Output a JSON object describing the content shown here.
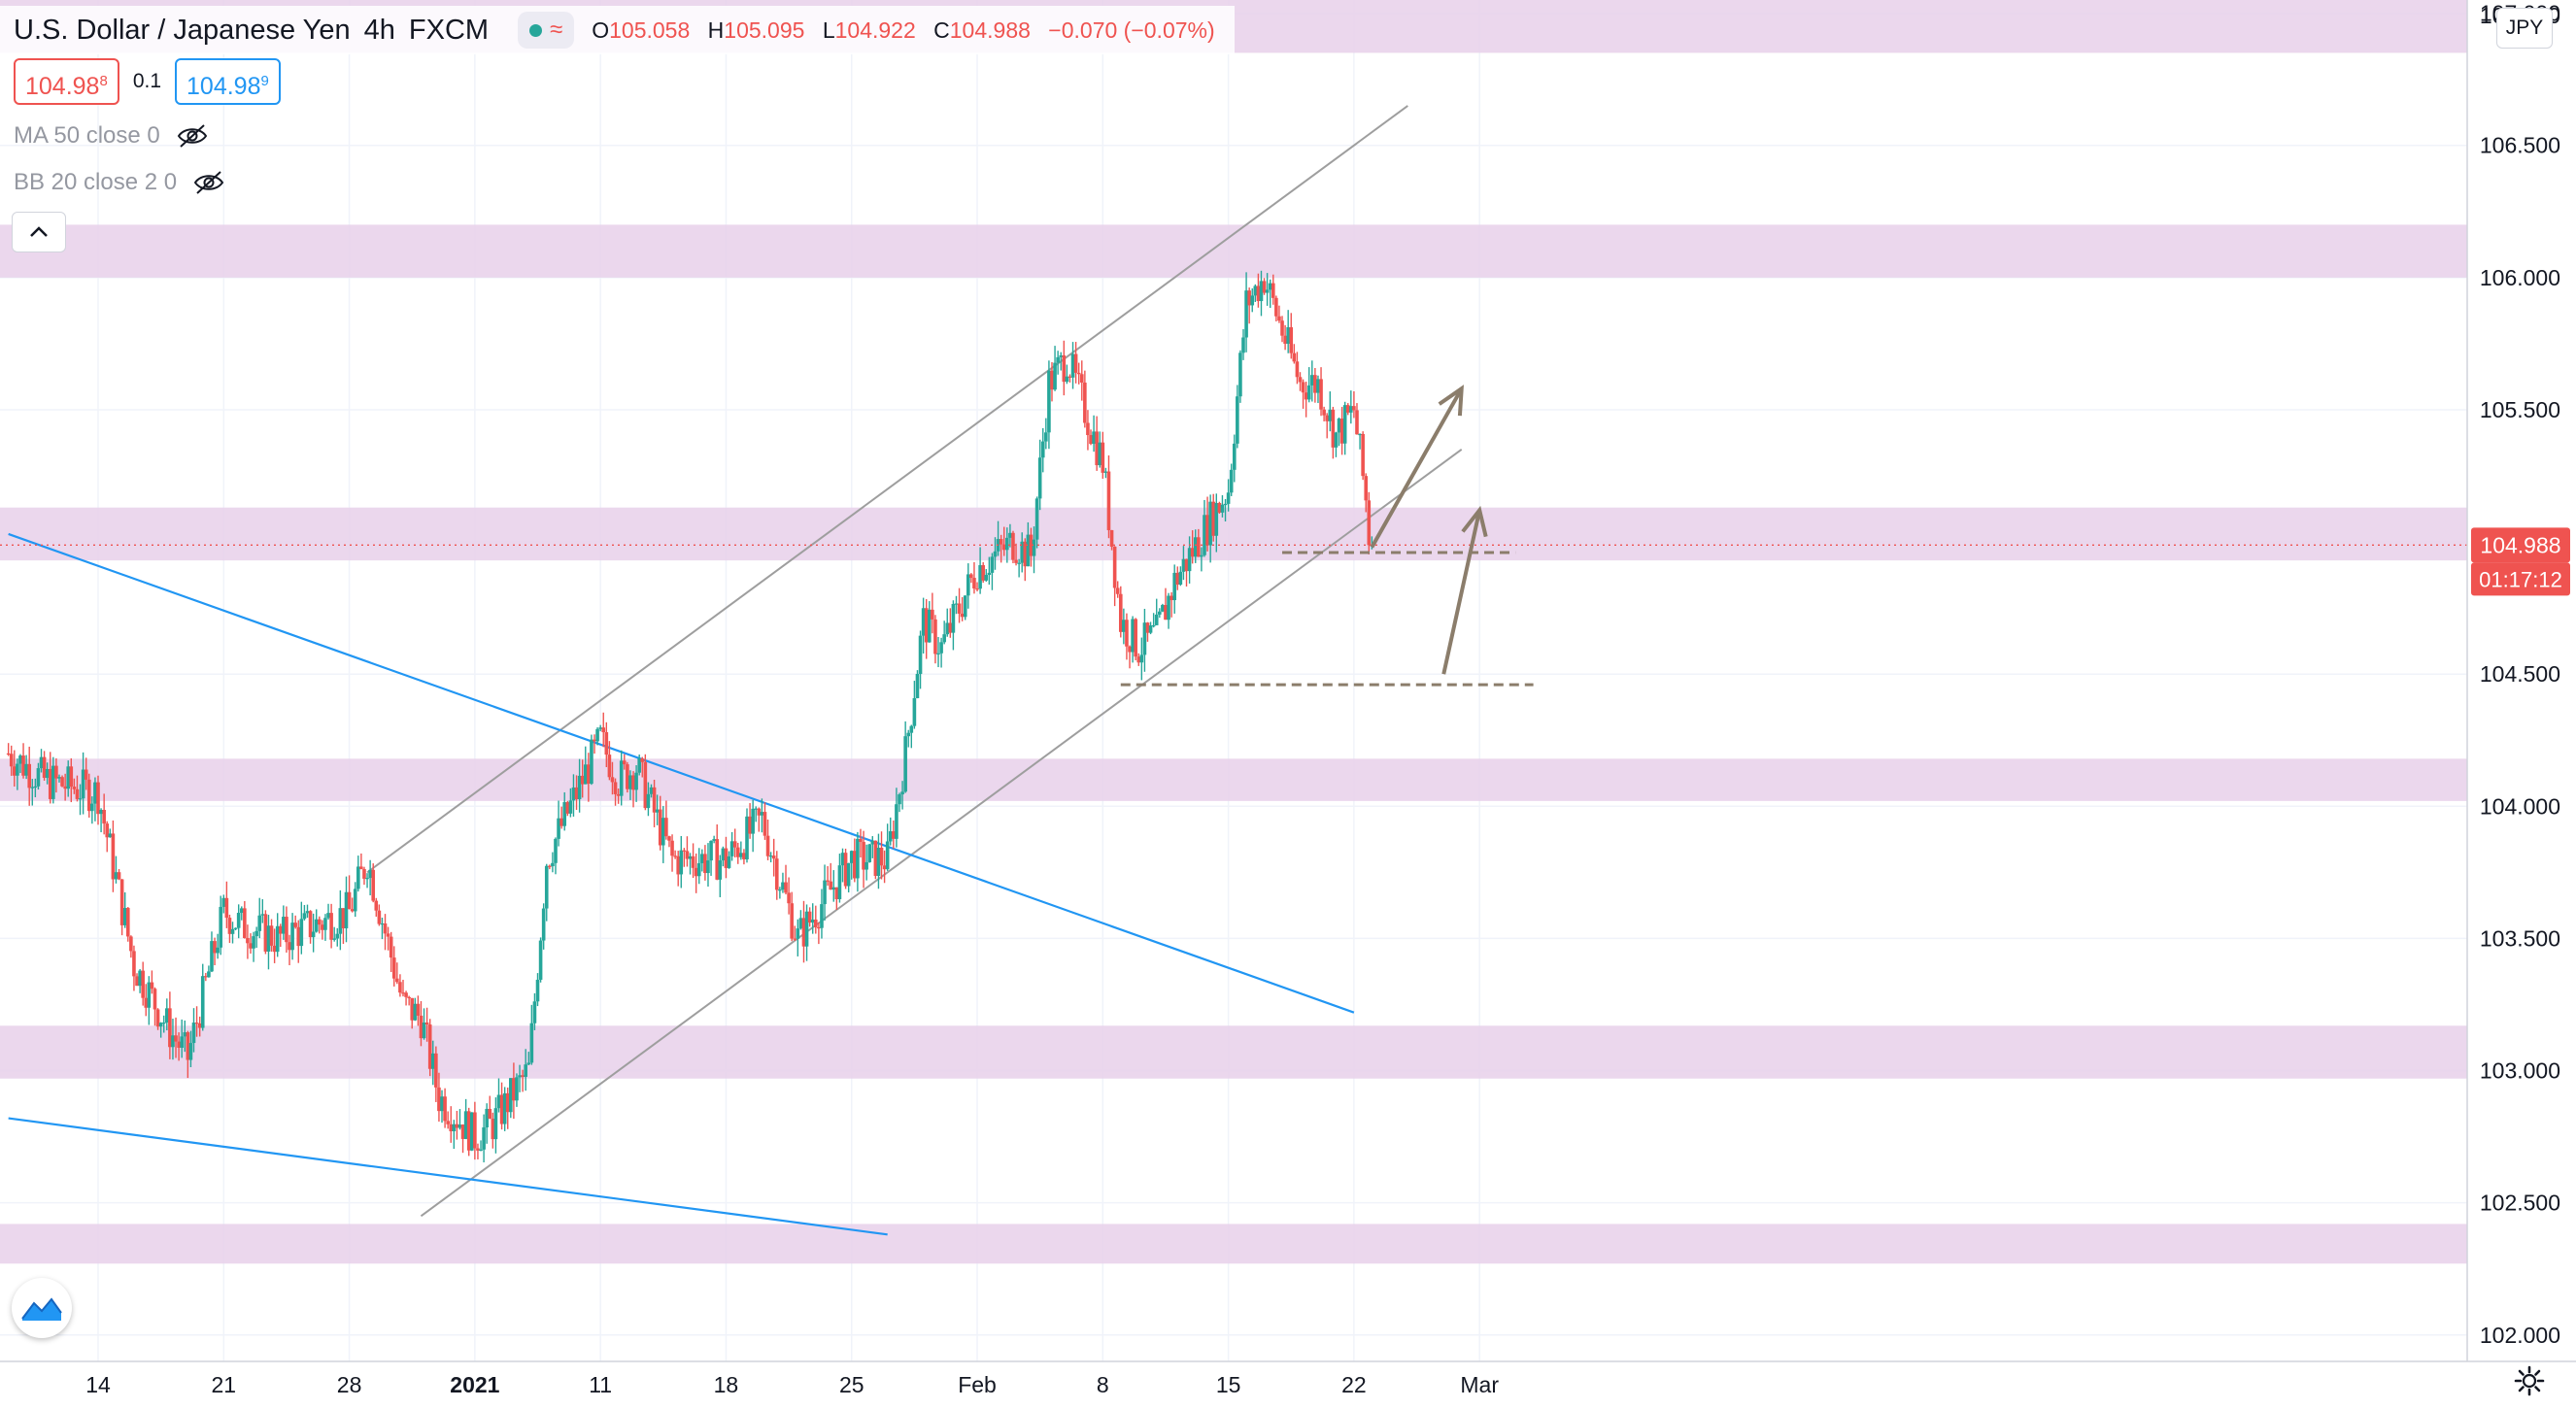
{
  "header": {
    "symbol_title": "U.S. Dollar / Japanese Yen",
    "interval": "4h",
    "exchange": "FXCM",
    "status_wave": "≈",
    "ohlc": {
      "o_label": "O",
      "o_value": "105.058",
      "h_label": "H",
      "h_value": "105.095",
      "l_label": "L",
      "l_value": "104.922",
      "c_label": "C",
      "c_value": "104.988",
      "change": "−0.070 (−0.07%)"
    }
  },
  "trade": {
    "sell_price": "104.98",
    "sell_pip": "8",
    "spread": "0.1",
    "buy_price": "104.98",
    "buy_pip": "9"
  },
  "indicators": [
    {
      "label": "MA 50 close 0"
    },
    {
      "label": "BB 20 close 2 0"
    }
  ],
  "currency_badge": "JPY",
  "colors": {
    "up": "#26a69a",
    "down": "#ef5350",
    "zone": "#e7d0ea",
    "trend_blue": "#2196f3",
    "channel_gray": "#9e9e9e",
    "arrow": "#8b7d6b",
    "dashed": "#8b7d6b"
  },
  "chart_data": {
    "type": "candlestick",
    "y_axis": {
      "ticks": [
        "102.000",
        "102.500",
        "103.000",
        "103.500",
        "104.000",
        "104.500",
        "105.000",
        "105.500",
        "106.000",
        "106.500",
        "107.000"
      ],
      "ylim": [
        101.9,
        107.05
      ],
      "partial_top_label": "107.000"
    },
    "x_axis": {
      "labels": [
        "14",
        "21",
        "28",
        "2021",
        "11",
        "18",
        "25",
        "Feb",
        "8",
        "15",
        "22",
        "Mar"
      ]
    },
    "last_price": {
      "value": "104.988",
      "countdown": "01:17:12"
    },
    "zones": [
      [
        106.85,
        107.05
      ],
      [
        106.0,
        106.2
      ],
      [
        104.93,
        105.13
      ],
      [
        104.02,
        104.18
      ],
      [
        102.97,
        103.17
      ],
      [
        102.27,
        102.42
      ]
    ],
    "channel": {
      "upper": [
        [
          "Dec 29",
          103.75
        ],
        [
          "Feb 25",
          106.65
        ]
      ],
      "lower": [
        [
          "Jan 1",
          102.45
        ],
        [
          "Feb 28",
          105.35
        ]
      ]
    },
    "trendlines": [
      {
        "from": [
          "Dec 9",
          105.03
        ],
        "to": [
          "Feb 22",
          103.22
        ]
      },
      {
        "from": [
          "Dec 9",
          102.82
        ],
        "to": [
          "Jan 27",
          102.38
        ]
      }
    ],
    "dashed_levels": [
      {
        "value": 104.46,
        "from": "Feb 9",
        "to": "Mar 4"
      },
      {
        "value": 104.96,
        "from": "Feb 18",
        "to": "Mar 3"
      }
    ],
    "arrows": [
      {
        "from": [
          "Feb 23",
          104.98
        ],
        "to": [
          "Feb 28",
          105.58
        ]
      },
      {
        "from": [
          "Feb 27",
          104.5
        ],
        "to": [
          "Mar 1",
          105.12
        ]
      }
    ],
    "price_path": [
      [
        "Dec 9",
        104.2
      ],
      [
        "Dec 11",
        104.1
      ],
      [
        "Dec 14",
        104.05
      ],
      [
        "Dec 16",
        103.4
      ],
      [
        "Dec 18",
        103.15
      ],
      [
        "Dec 19",
        103.05
      ],
      [
        "Dec 21",
        103.6
      ],
      [
        "Dec 22",
        103.55
      ],
      [
        "Dec 24",
        103.5
      ],
      [
        "Dec 28",
        103.6
      ],
      [
        "Dec 29",
        103.8
      ],
      [
        "Dec 31",
        103.25
      ],
      [
        "Jan 1",
        103.2
      ],
      [
        "Jan 2",
        102.9
      ],
      [
        "Jan 4",
        102.75
      ],
      [
        "Jan 5",
        102.8
      ],
      [
        "Jan 7",
        103.0
      ],
      [
        "Jan 8",
        103.8
      ],
      [
        "Jan 11",
        104.25
      ],
      [
        "Jan 12",
        104.1
      ],
      [
        "Jan 13",
        104.15
      ],
      [
        "Jan 15",
        103.8
      ],
      [
        "Jan 18",
        103.8
      ],
      [
        "Jan 20",
        103.95
      ],
      [
        "Jan 22",
        103.5
      ],
      [
        "Jan 25",
        103.8
      ],
      [
        "Jan 27",
        103.8
      ],
      [
        "Jan 28",
        104.2
      ],
      [
        "Jan 29",
        104.7
      ],
      [
        "Jan 30",
        104.6
      ],
      [
        "Feb 1",
        104.9
      ],
      [
        "Feb 3",
        105.0
      ],
      [
        "Feb 4",
        104.95
      ],
      [
        "Feb 5",
        105.6
      ],
      [
        "Feb 6",
        105.7
      ],
      [
        "Feb 8",
        105.3
      ],
      [
        "Feb 9",
        104.7
      ],
      [
        "Feb 10",
        104.6
      ],
      [
        "Feb 11",
        104.65
      ],
      [
        "Feb 12",
        104.85
      ],
      [
        "Feb 15",
        105.2
      ],
      [
        "Feb 16",
        105.9
      ],
      [
        "Feb 17",
        106.0
      ],
      [
        "Feb 19",
        105.6
      ],
      [
        "Feb 20",
        105.6
      ],
      [
        "Feb 21",
        105.4
      ],
      [
        "Feb 22",
        105.5
      ],
      [
        "Feb 23",
        104.988
      ]
    ]
  }
}
